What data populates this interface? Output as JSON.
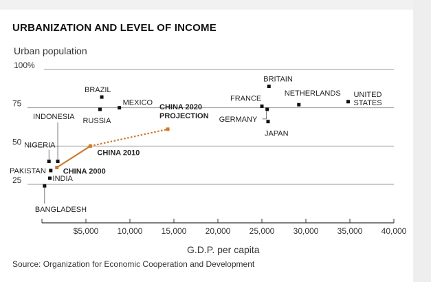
{
  "title": "URBANIZATION AND LEVEL OF INCOME",
  "ylabel": "Urban population",
  "xlabel": "G.D.P. per capita",
  "source": "Source: Organization for Economic Cooperation and Development",
  "chart_data": {
    "type": "scatter",
    "title": "URBANIZATION AND LEVEL OF INCOME",
    "xlabel": "G.D.P. per capita",
    "ylabel": "Urban population",
    "xlim": [
      0,
      40000
    ],
    "ylim": [
      20,
      100
    ],
    "xticks": [
      {
        "value": 5000,
        "label": "$5,000"
      },
      {
        "value": 10000,
        "label": "10,000"
      },
      {
        "value": 15000,
        "label": "15,000"
      },
      {
        "value": 20000,
        "label": "20,000"
      },
      {
        "value": 25000,
        "label": "25,000"
      },
      {
        "value": 30000,
        "label": "30,000"
      },
      {
        "value": 35000,
        "label": "35,000"
      },
      {
        "value": 40000,
        "label": "40,000"
      }
    ],
    "yticks": [
      {
        "value": 25,
        "label": "25"
      },
      {
        "value": 50,
        "label": "50"
      },
      {
        "value": 75,
        "label": "75"
      },
      {
        "value": 100,
        "label": "100%"
      }
    ],
    "grid": "horizontal",
    "points": [
      {
        "name": "BRAZIL",
        "x": 6800,
        "y": 82
      },
      {
        "name": "RUSSIA",
        "x": 6600,
        "y": 74
      },
      {
        "name": "MEXICO",
        "x": 8800,
        "y": 75
      },
      {
        "name": "INDONESIA",
        "x": 1800,
        "y": 40
      },
      {
        "name": "NIGERIA",
        "x": 800,
        "y": 40
      },
      {
        "name": "PAKISTAN",
        "x": 1000,
        "y": 34
      },
      {
        "name": "INDIA",
        "x": 900,
        "y": 29
      },
      {
        "name": "BANGLADESH",
        "x": 300,
        "y": 24
      },
      {
        "name": "FRANCE",
        "x": 25000,
        "y": 76
      },
      {
        "name": "GERMANY",
        "x": 25600,
        "y": 74
      },
      {
        "name": "JAPAN",
        "x": 25700,
        "y": 66
      },
      {
        "name": "BRITAIN",
        "x": 25800,
        "y": 89
      },
      {
        "name": "NETHERLANDS",
        "x": 29200,
        "y": 77
      },
      {
        "name": "UNITED STATES",
        "x": 34800,
        "y": 79
      }
    ],
    "china_series": [
      {
        "label": "CHINA 2000",
        "x": 1700,
        "y": 36
      },
      {
        "label": "CHINA 2010",
        "x": 5500,
        "y": 50
      },
      {
        "label": "CHINA 2020 PROJECTION",
        "x": 14300,
        "y": 61
      }
    ],
    "china_color": "#d0782a"
  }
}
